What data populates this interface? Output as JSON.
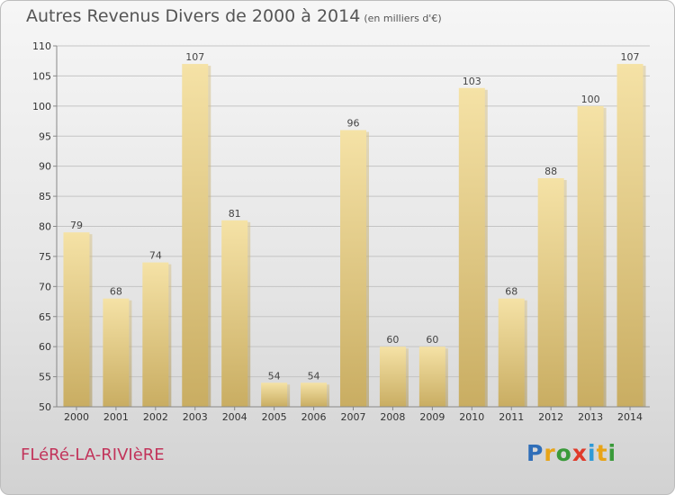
{
  "page": {
    "title": "Autres Revenus Divers de 2000 à 2014",
    "subtitle": "(en milliers d'€)",
    "place": "FLéRé-LA-RIVIèRE",
    "logo": {
      "letters": [
        "P",
        "r",
        "o",
        "x",
        "i",
        "t",
        "i"
      ],
      "colors": [
        "#2f6eb8",
        "#e8a417",
        "#3a9a3a",
        "#e03a2a",
        "#2f9ad6",
        "#e8a417",
        "#3a9a3a"
      ]
    }
  },
  "chart_data": {
    "type": "bar",
    "title": "Autres Revenus Divers de 2000 à 2014",
    "subtitle": "(en milliers d'€)",
    "categories": [
      "2000",
      "2001",
      "2002",
      "2003",
      "2004",
      "2005",
      "2006",
      "2007",
      "2008",
      "2009",
      "2010",
      "2011",
      "2012",
      "2013",
      "2014"
    ],
    "values": [
      79,
      68,
      74,
      107,
      81,
      54,
      54,
      96,
      60,
      60,
      103,
      68,
      88,
      100,
      107
    ],
    "ylim": [
      50,
      110
    ],
    "yticks": [
      50,
      55,
      60,
      65,
      70,
      75,
      80,
      85,
      90,
      95,
      100,
      105,
      110
    ],
    "grid": true,
    "bar_color": "#e8d08c"
  }
}
